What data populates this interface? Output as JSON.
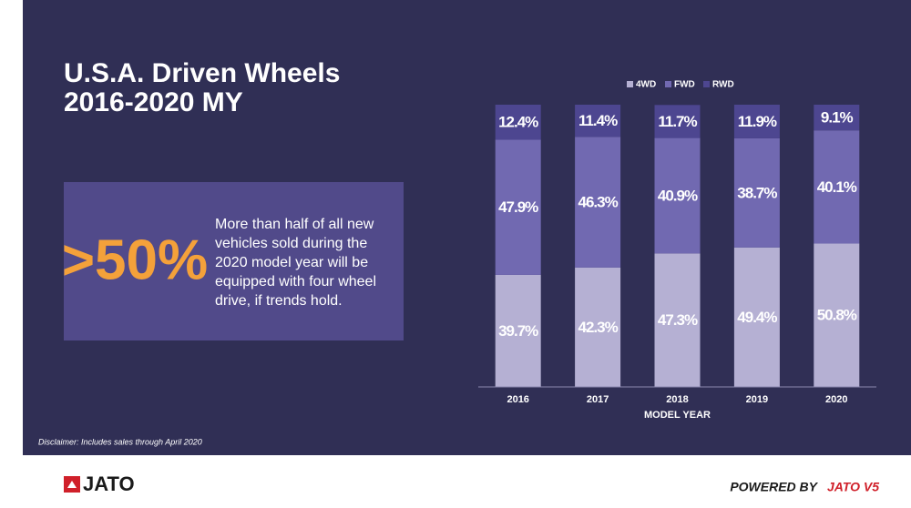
{
  "header": {
    "title_lines": [
      "U.S.A. Driven Wheels",
      "2016-2020 MY"
    ]
  },
  "callout": {
    "headline": ">50%",
    "text_lines": [
      "More than half of all new",
      "vehicles sold during the",
      "2020 model year will be",
      "equipped with four wheel",
      "drive, if trends hold."
    ]
  },
  "chart_data": {
    "type": "stacked_bar",
    "x_label": "MODEL YEAR",
    "categories": [
      "2016",
      "2017",
      "2018",
      "2019",
      "2020"
    ],
    "series": [
      {
        "name": "4WD",
        "color": "#b5b0d3",
        "values": [
          39.7,
          42.3,
          47.3,
          49.4,
          50.8
        ],
        "value_labels": [
          "39.7%",
          "42.3%",
          "47.3%",
          "49.4%",
          "50.8%"
        ]
      },
      {
        "name": "FWD",
        "color": "#7169b1",
        "values": [
          47.9,
          46.3,
          40.9,
          38.7,
          40.1
        ],
        "value_labels": [
          "47.9%",
          "46.3%",
          "40.9%",
          "38.7%",
          "40.1%"
        ]
      },
      {
        "name": "RWD",
        "color": "#4d4690",
        "values": [
          12.4,
          11.4,
          11.7,
          11.9,
          9.1
        ],
        "value_labels": [
          "12.4%",
          "11.4%",
          "11.7%",
          "11.9%",
          "9.1%"
        ]
      }
    ],
    "legend": "top"
  },
  "disclaimer": "Disclaimer: Includes sales through April 2020",
  "footer": {
    "logo": "JATO",
    "powered_by": "POWERED BY",
    "brand": "JATO V5"
  }
}
